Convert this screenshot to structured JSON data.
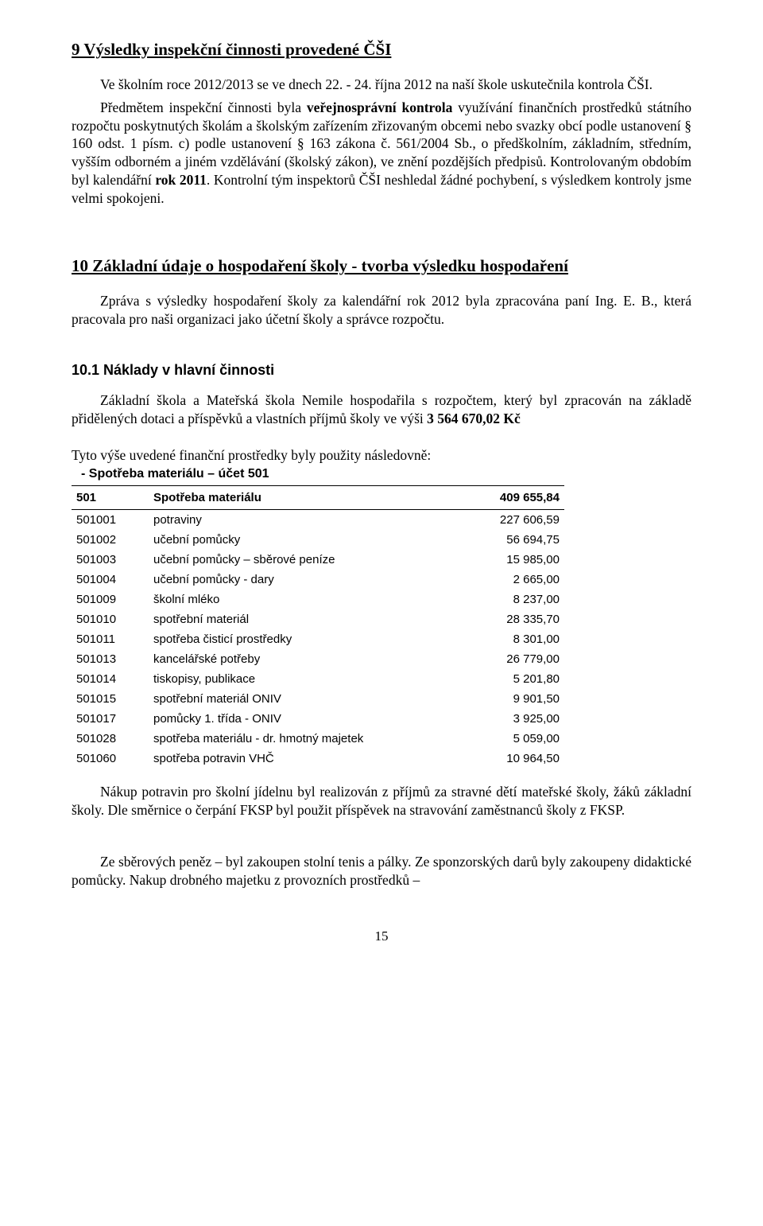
{
  "section9": {
    "title": "9   Výsledky inspekční činnosti provedené ČŠI",
    "p1": "Ve školním roce 2012/2013 se ve dnech 22. - 24. října 2012 na naší škole uskutečnila kontrola ČŠI.",
    "p2_a": "Předmětem inspekční činnosti byla ",
    "p2_b": "veřejnosprávní kontrola",
    "p2_c": " využívání finančních prostředků státního rozpočtu poskytnutých školám a školským zařízením zřizovaným obcemi nebo svazky obcí podle ustanovení § 160 odst. 1 písm. c) podle ustanovení § 163 zákona č. 561/2004 Sb., o předškolním, základním, středním, vyšším odborném a jiném vzdělávání (školský zákon), ve znění pozdějších předpisů. Kontrolovaným obdobím byl kalendářní ",
    "p2_d": "rok 2011",
    "p2_e": ". Kontrolní tým inspektorů ČŠI neshledal žádné pochybení, s výsledkem kontroly jsme velmi spokojeni."
  },
  "section10": {
    "title": "10   Základní údaje o hospodaření školy -  tvorba výsledku hospodaření",
    "p1": "Zpráva s výsledky hospodaření školy za kalendářní rok 2012 byla zpracována paní Ing. E. B., která pracovala pro naši organizaci jako účetní školy a správce rozpočtu.",
    "sub1": {
      "title": "10.1   Náklady v hlavní činnosti",
      "p1_a": "Základní škola a Mateřská škola Nemile hospodařila s rozpočtem, který byl zpracován na základě přidělených dotaci a příspěvků a vlastních příjmů školy ve výši ",
      "p1_b": "3 564 670,02 Kč",
      "list_intro": "Tyto výše uvedené finanční prostředky byly použity následovně:",
      "dash1": "-    Spotřeba materiálu – účet 501"
    }
  },
  "costTable": {
    "header": {
      "code": "501",
      "label": "Spotřeba materiálu",
      "amount": "409 655,84"
    },
    "rows": [
      {
        "code": "501001",
        "label": "potraviny",
        "amount": "227 606,59"
      },
      {
        "code": "501002",
        "label": "učební pomůcky",
        "amount": "56 694,75"
      },
      {
        "code": "501003",
        "label": "učební pomůcky – sběrové peníze",
        "amount": "15 985,00"
      },
      {
        "code": "501004",
        "label": "učební pomůcky - dary",
        "amount": "2 665,00"
      },
      {
        "code": "501009",
        "label": "školní mléko",
        "amount": "8 237,00"
      },
      {
        "code": "501010",
        "label": "spotřební materiál",
        "amount": "28 335,70"
      },
      {
        "code": "501011",
        "label": "spotřeba čisticí prostředky",
        "amount": "8 301,00"
      },
      {
        "code": "501013",
        "label": "kancelářské potřeby",
        "amount": "26 779,00"
      },
      {
        "code": "501014",
        "label": "tiskopisy, publikace",
        "amount": "5 201,80"
      },
      {
        "code": "501015",
        "label": "spotřební materiál ONIV",
        "amount": "9 901,50"
      },
      {
        "code": "501017",
        "label": "pomůcky 1. třída - ONIV",
        "amount": "3 925,00"
      },
      {
        "code": "501028",
        "label": "spotřeba materiálu - dr. hmotný majetek",
        "amount": "5 059,00"
      },
      {
        "code": "501060",
        "label": "spotřeba potravin VHČ",
        "amount": "10 964,50"
      }
    ]
  },
  "afterTable": {
    "p1": "Nákup potravin pro školní jídelnu byl realizován z příjmů za stravné dětí mateřské školy, žáků základní školy. Dle směrnice o čerpání FKSP byl použit příspěvek na stravování zaměstnanců školy z FKSP.",
    "p2": "Ze sběrových peněz – byl zakoupen stolní tenis a pálky. Ze sponzorských darů byly zakoupeny didaktické pomůcky. Nakup drobného majetku z provozních prostředků –"
  },
  "pageNumber": "15"
}
